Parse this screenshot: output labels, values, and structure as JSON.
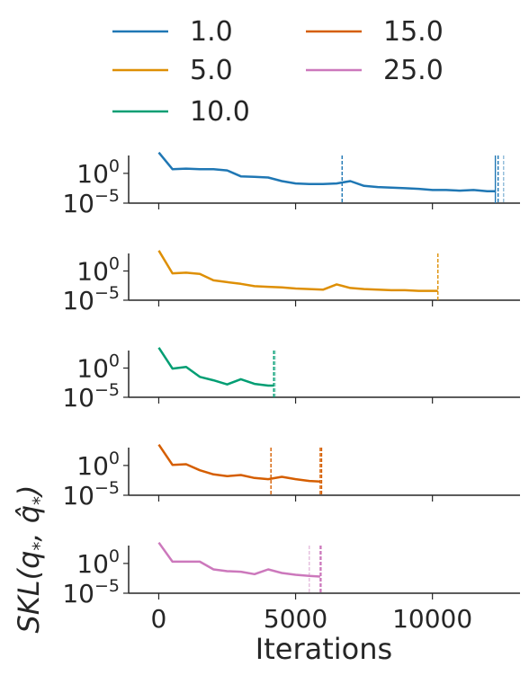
{
  "chart_data": {
    "type": "line",
    "xlabel": "Iterations",
    "ylabel": "SKL(q₊, q̂₊)",
    "ylabel_parts": {
      "main": "SKL(",
      "q1": "q",
      "sub1": "*",
      "comma": ", ",
      "q2": "q̂",
      "sub2": "*",
      "close": ")"
    },
    "xlim": [
      -1100,
      13200
    ],
    "x_ticks": [
      0,
      5000,
      10000
    ],
    "x_tick_labels": [
      "0",
      "5000",
      "10000"
    ],
    "ylog": true,
    "ylim_log10": [
      -5,
      3
    ],
    "y_ticks_log10": [
      0,
      -5
    ],
    "y_tick_labels": [
      {
        "base": "10",
        "exp": "0"
      },
      {
        "base": "10",
        "exp": "−5"
      }
    ],
    "legend": {
      "placement": "top-center",
      "columns": 2,
      "entries": [
        "1.0",
        "5.0",
        "10.0",
        "15.0",
        "25.0"
      ]
    },
    "grid": false,
    "panels": [
      {
        "name": "1.0",
        "color": "#1f77b4",
        "x": [
          0,
          500,
          1000,
          1500,
          2000,
          2500,
          3000,
          3500,
          4000,
          4500,
          5000,
          5500,
          6000,
          6500,
          7000,
          7500,
          8000,
          8500,
          9000,
          9500,
          10000,
          10500,
          11000,
          11500,
          12000,
          12300
        ],
        "y_log10": [
          3.5,
          0.7,
          0.8,
          0.7,
          0.7,
          0.5,
          -0.5,
          -0.6,
          -0.7,
          -1.3,
          -1.7,
          -1.8,
          -1.8,
          -1.7,
          -1.3,
          -2.1,
          -2.3,
          -2.4,
          -2.5,
          -2.6,
          -2.8,
          -2.8,
          -2.9,
          -2.8,
          -3.0,
          -3.0
        ],
        "vlines": [
          {
            "x": 6700,
            "style": "dashed",
            "alpha": 1.0
          },
          {
            "x": 12300,
            "style": "solid",
            "alpha": 1.0
          },
          {
            "x": 12400,
            "style": "dashed",
            "alpha": 1.0
          },
          {
            "x": 12600,
            "style": "dashed",
            "alpha": 0.5
          }
        ]
      },
      {
        "name": "5.0",
        "color": "#de8f05",
        "x": [
          0,
          500,
          1000,
          1500,
          2000,
          2500,
          3000,
          3500,
          4000,
          4500,
          5000,
          5500,
          6000,
          6500,
          7000,
          7500,
          8000,
          8500,
          9000,
          9500,
          10000,
          10200
        ],
        "y_log10": [
          3.5,
          -0.4,
          -0.3,
          -0.5,
          -1.6,
          -1.9,
          -2.2,
          -2.6,
          -2.7,
          -2.8,
          -3.0,
          -3.1,
          -3.2,
          -2.3,
          -2.9,
          -3.1,
          -3.2,
          -3.3,
          -3.3,
          -3.4,
          -3.4,
          -3.4
        ],
        "vlines": [
          {
            "x": 10200,
            "style": "dashed",
            "alpha": 1.0
          }
        ]
      },
      {
        "name": "10.0",
        "color": "#029e73",
        "x": [
          0,
          500,
          1000,
          1500,
          2000,
          2500,
          3000,
          3500,
          4000,
          4200
        ],
        "y_log10": [
          3.5,
          -0.1,
          0.2,
          -1.5,
          -2.1,
          -2.8,
          -1.9,
          -2.7,
          -3.0,
          -3.0
        ],
        "vlines": [
          {
            "x": 4200,
            "style": "dashed",
            "alpha": 1.0
          },
          {
            "x": 4250,
            "style": "dashed",
            "alpha": 0.5
          }
        ]
      },
      {
        "name": "15.0",
        "color": "#d55e00",
        "x": [
          0,
          500,
          1000,
          1500,
          2000,
          2500,
          3000,
          3500,
          4000,
          4500,
          5000,
          5500,
          5900
        ],
        "y_log10": [
          3.5,
          0.1,
          0.2,
          -0.8,
          -1.5,
          -1.8,
          -1.6,
          -2.1,
          -2.3,
          -1.9,
          -2.3,
          -2.6,
          -2.7
        ],
        "vlines": [
          {
            "x": 4100,
            "style": "dashed",
            "alpha": 1.0
          },
          {
            "x": 5900,
            "style": "dashed",
            "alpha": 1.0
          },
          {
            "x": 5950,
            "style": "dashed",
            "alpha": 1.0
          }
        ]
      },
      {
        "name": "25.0",
        "color": "#cc78bc",
        "x": [
          0,
          500,
          1000,
          1500,
          2000,
          2500,
          3000,
          3500,
          4000,
          4500,
          5000,
          5500,
          5900
        ],
        "y_log10": [
          3.5,
          0.3,
          0.3,
          0.3,
          -1.0,
          -1.3,
          -1.4,
          -1.8,
          -1.0,
          -1.6,
          -1.9,
          -2.1,
          -2.2
        ],
        "vlines": [
          {
            "x": 5500,
            "style": "dashed",
            "alpha": 0.5
          },
          {
            "x": 5900,
            "style": "dashed",
            "alpha": 1.0
          },
          {
            "x": 5930,
            "style": "dashed",
            "alpha": 1.0
          }
        ]
      }
    ]
  }
}
